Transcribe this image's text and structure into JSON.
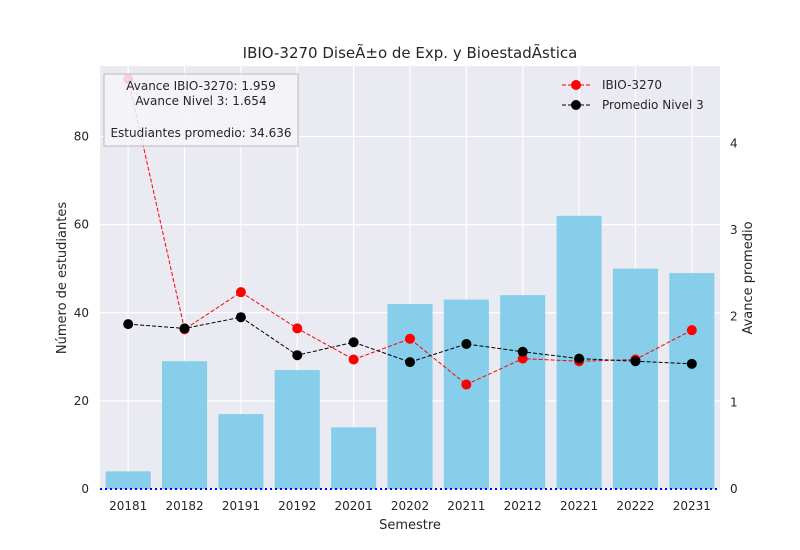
{
  "chart_data": {
    "type": "bar",
    "title": "IBIO-3270 DiseÃ±o de Exp. y BioestadÃ­stica",
    "xlabel": "Semestre",
    "ylabel": "Número de estudiantes",
    "ylabel_right": "Avance promedio",
    "categories": [
      "20181",
      "20182",
      "20191",
      "20192",
      "20201",
      "20202",
      "20211",
      "20212",
      "20221",
      "20222",
      "20231"
    ],
    "ylim": [
      0,
      96
    ],
    "yticks": [
      0,
      20,
      40,
      60,
      80
    ],
    "ylim_right": [
      0,
      4.9
    ],
    "yticks_right": [
      0,
      1,
      2,
      3,
      4
    ],
    "grid": true,
    "legend_position": "top-right",
    "bars": {
      "name": "Número de estudiantes",
      "color": "#87CEEB",
      "values": [
        4,
        29,
        17,
        27,
        14,
        42,
        43,
        44,
        62,
        50,
        49
      ]
    },
    "series": [
      {
        "name": "IBIO-3270",
        "axis": "right",
        "color": "#ff0000",
        "values": [
          4.75,
          1.85,
          2.28,
          1.86,
          1.5,
          1.74,
          1.21,
          1.51,
          1.48,
          1.5,
          1.84
        ]
      },
      {
        "name": "Promedio Nivel 3",
        "axis": "right",
        "color": "#000000",
        "values": [
          1.91,
          1.86,
          1.99,
          1.55,
          1.7,
          1.47,
          1.68,
          1.59,
          1.51,
          1.48,
          1.45
        ]
      }
    ],
    "stats_box": {
      "line1": "Avance IBIO-3270: 1.959",
      "line2": "Avance Nivel 3: 1.654",
      "line3": "Estudiantes promedio: 34.636"
    }
  },
  "colors": {
    "background": "#EAEAF2",
    "grid": "#ffffff",
    "baseline": "#0000ff"
  }
}
